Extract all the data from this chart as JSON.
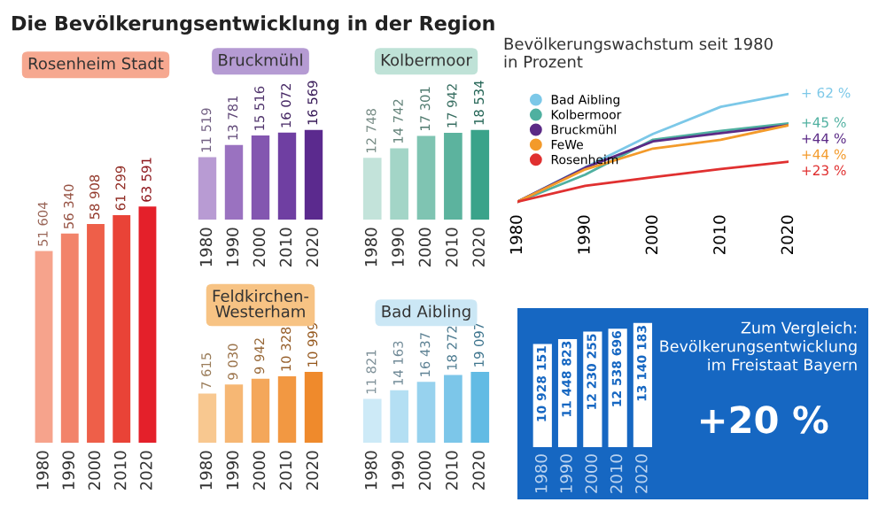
{
  "chart_data": [
    {
      "type": "bar",
      "title": "Rosenheim Stadt",
      "annotations": [
        "Die Bevölkerungsentwicklung in der Region"
      ],
      "categories": [
        "1980",
        "1990",
        "2000",
        "2010",
        "2020"
      ],
      "values": [
        51604,
        56340,
        58908,
        61299,
        63591
      ],
      "value_labels": [
        "51 604",
        "56 340",
        "58 908",
        "61 299",
        "63 591"
      ],
      "colors": [
        "#f6a38c",
        "#f2836a",
        "#ee5f49",
        "#e94337",
        "#e4202a"
      ]
    },
    {
      "type": "bar",
      "title": "Bruckmühl",
      "categories": [
        "1980",
        "1990",
        "2000",
        "2010",
        "2020"
      ],
      "values": [
        11519,
        13781,
        15516,
        16072,
        16569
      ],
      "value_labels": [
        "11 519",
        "13 781",
        "15 516",
        "16 072",
        "16 569"
      ],
      "colors": [
        "#b89bd3",
        "#9a72c0",
        "#8356b0",
        "#6f3fa2",
        "#5b2a8e"
      ]
    },
    {
      "type": "bar",
      "title": "Kolbermoor",
      "categories": [
        "1980",
        "1990",
        "2000",
        "2010",
        "2020"
      ],
      "values": [
        12748,
        14742,
        17301,
        17942,
        18534
      ],
      "value_labels": [
        "12 748",
        "14 742",
        "17 301",
        "17 942",
        "18 534"
      ],
      "colors": [
        "#c3e3da",
        "#a3d5c7",
        "#7fc4b2",
        "#5cb39e",
        "#3aa38a"
      ]
    },
    {
      "type": "bar",
      "title": "Feldkirchen-\nWesterham",
      "categories": [
        "1980",
        "1990",
        "2000",
        "2010",
        "2020"
      ],
      "values": [
        7615,
        9030,
        9942,
        10328,
        10999
      ],
      "value_labels": [
        "7 615",
        "9 030",
        "9 942",
        "10 328",
        "10 999"
      ],
      "colors": [
        "#f8c890",
        "#f6b774",
        "#f4a75a",
        "#f29842",
        "#ef8a2c"
      ]
    },
    {
      "type": "bar",
      "title": "Bad Aibling",
      "categories": [
        "1980",
        "1990",
        "2000",
        "2010",
        "2020"
      ],
      "values": [
        11821,
        14163,
        16437,
        18272,
        19097
      ],
      "value_labels": [
        "11 821",
        "14 163",
        "16 437",
        "18 272",
        "19 097"
      ],
      "colors": [
        "#cdeaf7",
        "#b4dff3",
        "#97d2ee",
        "#7cc6e9",
        "#62bbe4"
      ]
    },
    {
      "type": "line",
      "title": "Bevölkerungswachstum seit 1980\nin Prozent",
      "x": [
        1980,
        1990,
        2000,
        2010,
        2020
      ],
      "xlim": [
        1980,
        2020
      ],
      "xticks": [
        1980,
        1990,
        2000,
        2010,
        2020
      ],
      "legend": "top left",
      "marker": "none",
      "series": [
        {
          "name": "Bad Aibling",
          "color": "#7cc8e8",
          "values": [
            0,
            19.8,
            39.0,
            54.6,
            62
          ],
          "value_labels": [
            null,
            null,
            null,
            null,
            "+ 62 %"
          ]
        },
        {
          "name": "Kolbermoor",
          "color": "#4fb0a0",
          "values": [
            0,
            15.6,
            35.7,
            40.7,
            45
          ],
          "value_labels": [
            null,
            null,
            null,
            null,
            "+45 %"
          ]
        },
        {
          "name": "Bruckmühl",
          "color": "#5b2a86",
          "values": [
            0,
            19.6,
            34.7,
            39.5,
            44
          ],
          "value_labels": [
            null,
            null,
            null,
            null,
            "+44 %"
          ]
        },
        {
          "name": "FeWe",
          "color": "#f39a2a",
          "values": [
            0,
            18.6,
            30.6,
            35.6,
            44
          ],
          "value_labels": [
            null,
            null,
            null,
            null,
            "+44 %"
          ]
        },
        {
          "name": "Rosenheim",
          "color": "#e03030",
          "values": [
            0,
            9.2,
            14.2,
            18.8,
            23
          ],
          "value_labels": [
            null,
            null,
            null,
            null,
            "+23 %"
          ]
        }
      ]
    },
    {
      "type": "bar",
      "annotations": [
        "Zum Vergleich:\nBevölkerungsentwicklung\nim Freistaat Bayern",
        "+20 %"
      ],
      "categories": [
        "1980",
        "1990",
        "2000",
        "2010",
        "2020"
      ],
      "values": [
        10928151,
        11448823,
        12230255,
        12538696,
        13140183
      ],
      "value_labels": [
        "10 928 151",
        "11 448 823",
        "12 230 255",
        "12 538 696",
        "13 140 183"
      ],
      "colors": [
        "#ffffff",
        "#ffffff",
        "#ffffff",
        "#ffffff",
        "#ffffff"
      ]
    }
  ]
}
